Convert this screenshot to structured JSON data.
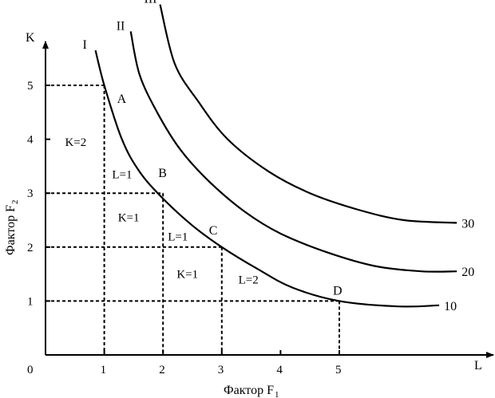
{
  "chart_data": {
    "type": "line",
    "xlabel": "Фактор F",
    "xlabel_sub": "1",
    "ylabel": "Фактор F",
    "ylabel_sub": "2",
    "x_axis_letter": "L",
    "y_axis_letter": "K",
    "origin_label": "0",
    "x_ticks": [
      "1",
      "2",
      "3",
      "4",
      "5"
    ],
    "y_ticks": [
      "1",
      "2",
      "3",
      "4",
      "5"
    ],
    "xlim": [
      0,
      7.6
    ],
    "ylim": [
      0,
      5.9
    ],
    "series": [
      {
        "name": "I",
        "end_label": "10",
        "points": [
          [
            0.85,
            5.65
          ],
          [
            1.0,
            5.0
          ],
          [
            1.3,
            4.0
          ],
          [
            1.6,
            3.4
          ],
          [
            2.0,
            2.9
          ],
          [
            2.5,
            2.4
          ],
          [
            3.0,
            2.0
          ],
          [
            3.6,
            1.6
          ],
          [
            4.2,
            1.25
          ],
          [
            5.0,
            1.0
          ],
          [
            6.0,
            0.9
          ],
          [
            6.7,
            0.92
          ]
        ]
      },
      {
        "name": "II",
        "end_label": "20",
        "points": [
          [
            1.45,
            6.0
          ],
          [
            1.6,
            5.2
          ],
          [
            1.9,
            4.5
          ],
          [
            2.3,
            3.8
          ],
          [
            2.8,
            3.2
          ],
          [
            3.4,
            2.65
          ],
          [
            4.0,
            2.25
          ],
          [
            4.8,
            1.9
          ],
          [
            5.6,
            1.65
          ],
          [
            6.4,
            1.55
          ],
          [
            7.0,
            1.55
          ]
        ]
      },
      {
        "name": "III",
        "end_label": "30",
        "points": [
          [
            1.95,
            6.5
          ],
          [
            2.2,
            5.4
          ],
          [
            2.6,
            4.7
          ],
          [
            3.1,
            4.0
          ],
          [
            3.8,
            3.4
          ],
          [
            4.5,
            3.0
          ],
          [
            5.3,
            2.7
          ],
          [
            6.1,
            2.5
          ],
          [
            7.0,
            2.45
          ]
        ]
      }
    ],
    "points": [
      {
        "label": "A",
        "x": 1,
        "y": 5
      },
      {
        "label": "B",
        "x": 2,
        "y": 3
      },
      {
        "label": "C",
        "x": 3,
        "y": 2
      },
      {
        "label": "D",
        "x": 5,
        "y": 1
      }
    ],
    "annotations": [
      {
        "text": "K=2",
        "x": 0.55,
        "y": 3.95
      },
      {
        "text": "L=1",
        "x": 1.35,
        "y": 3.35
      },
      {
        "text": "K=1",
        "x": 1.45,
        "y": 2.55
      },
      {
        "text": "L=1",
        "x": 2.3,
        "y": 2.2
      },
      {
        "text": "K=1",
        "x": 2.45,
        "y": 1.5
      },
      {
        "text": "L=2",
        "x": 3.5,
        "y": 1.4
      }
    ]
  }
}
